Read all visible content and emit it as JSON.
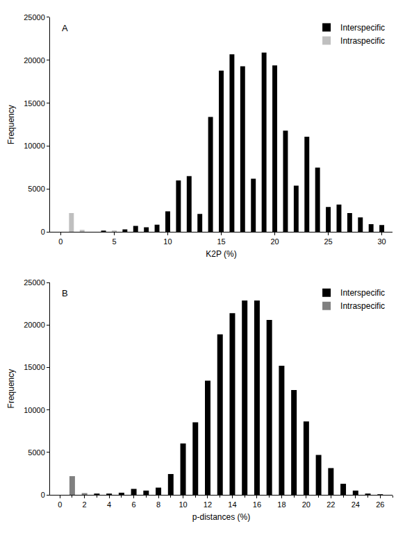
{
  "chart_data": [
    {
      "type": "bar",
      "title": "A",
      "x_label": "K2P (%)",
      "y_label": "Frequency",
      "x": [
        1,
        2,
        3,
        4,
        5,
        6,
        7,
        8,
        9,
        10,
        11,
        12,
        13,
        14,
        15,
        16,
        17,
        18,
        19,
        20,
        21,
        22,
        23,
        24,
        25,
        26,
        27,
        28,
        29,
        30
      ],
      "series": [
        {
          "name": "Interspecific",
          "color": "#000000",
          "values": [
            null,
            null,
            null,
            150,
            120,
            300,
            700,
            550,
            850,
            2400,
            6000,
            6500,
            2100,
            13400,
            18800,
            20700,
            19300,
            6200,
            20900,
            19400,
            11800,
            5400,
            11100,
            7500,
            2900,
            3200,
            2200,
            1700,
            900,
            800
          ]
        },
        {
          "name": "Intraspecific",
          "color": "#bfbfbf",
          "values": [
            2200,
            250,
            null,
            null,
            50,
            null,
            null,
            null,
            null,
            null,
            null,
            null,
            null,
            null,
            null,
            null,
            null,
            null,
            null,
            null,
            null,
            null,
            null,
            null,
            null,
            null,
            null,
            null,
            null,
            null
          ]
        }
      ],
      "xlim": [
        -1,
        31
      ],
      "xticks": [
        0,
        5,
        10,
        15,
        20,
        25,
        30
      ],
      "ylim": [
        0,
        25000
      ],
      "yticks": [
        0,
        5000,
        10000,
        15000,
        20000,
        25000
      ],
      "legend": "upper right",
      "grid": false
    },
    {
      "type": "bar",
      "title": "B",
      "x_label": "p-distances (%)",
      "y_label": "Frequency",
      "x": [
        1,
        2,
        3,
        4,
        5,
        6,
        7,
        8,
        9,
        10,
        11,
        12,
        13,
        14,
        15,
        16,
        17,
        18,
        19,
        20,
        21,
        22,
        23,
        24,
        25,
        26
      ],
      "series": [
        {
          "name": "Interspecific",
          "color": "#000000",
          "values": [
            null,
            null,
            150,
            100,
            250,
            700,
            500,
            850,
            2450,
            6050,
            8550,
            13450,
            18900,
            21400,
            22900,
            22900,
            20600,
            15200,
            12350,
            8650,
            4700,
            3150,
            1300,
            500,
            150,
            50
          ]
        },
        {
          "name": "Intraspecific",
          "color": "#808080",
          "values": [
            2200,
            200,
            null,
            null,
            null,
            null,
            null,
            null,
            null,
            null,
            null,
            null,
            null,
            null,
            null,
            null,
            null,
            null,
            null,
            null,
            null,
            null,
            null,
            null,
            null,
            null
          ]
        }
      ],
      "xlim": [
        -0.8,
        27
      ],
      "xticks": [
        0,
        2,
        4,
        6,
        8,
        10,
        12,
        14,
        16,
        18,
        20,
        22,
        24,
        26
      ],
      "ylim": [
        0,
        25000
      ],
      "yticks": [
        0,
        5000,
        10000,
        15000,
        20000,
        25000
      ],
      "legend": "upper right",
      "grid": false
    }
  ]
}
